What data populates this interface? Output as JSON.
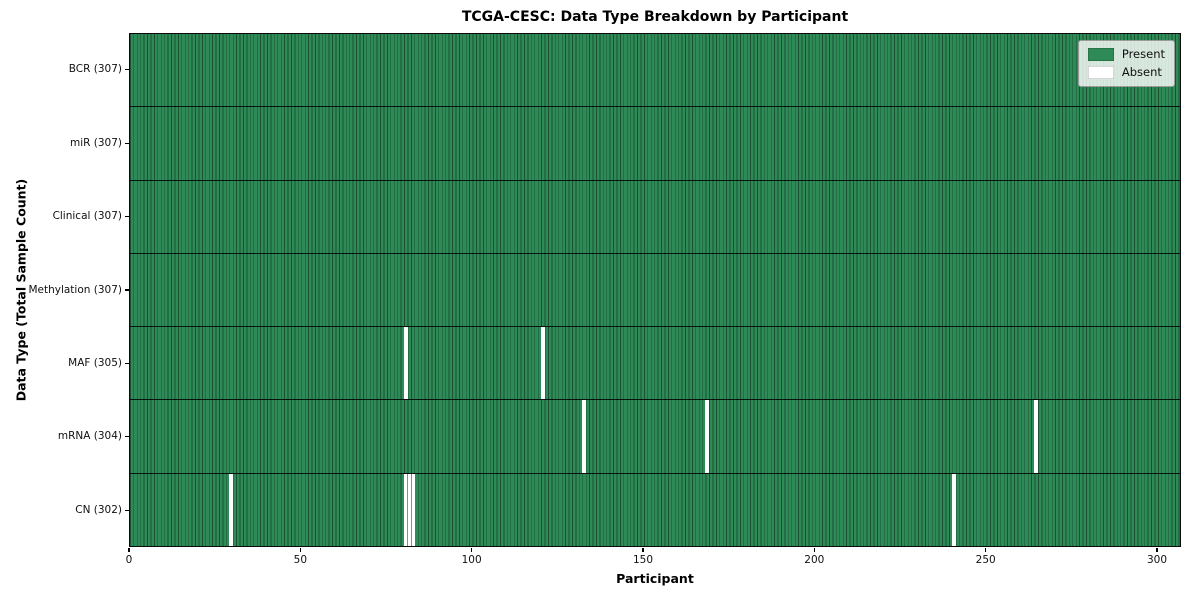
{
  "chart_data": {
    "type": "heatmap",
    "title": "TCGA-CESC: Data Type Breakdown by Participant",
    "xlabel": "Participant",
    "ylabel": "Data Type (Total Sample Count)",
    "xlim": [
      0,
      307
    ],
    "n_participants": 307,
    "x_ticks": [
      0,
      50,
      100,
      150,
      200,
      250,
      300
    ],
    "grid": false,
    "colors": {
      "present": "#2e8b57",
      "absent": "#ffffff",
      "cell_edge": "rgba(0,0,0,0.42)",
      "row_divider": "rgba(0,0,0,0.85)",
      "plot_border": "#0a0a0a"
    },
    "legend": {
      "position": "upper right",
      "entries": [
        {
          "label": "Present",
          "color": "#2e8b57"
        },
        {
          "label": "Absent",
          "color": "#ffffff"
        }
      ]
    },
    "rows": [
      {
        "data_type": "BCR",
        "label": "BCR (307)",
        "present_count": 307,
        "absent_participants": []
      },
      {
        "data_type": "miR",
        "label": "miR (307)",
        "present_count": 307,
        "absent_participants": []
      },
      {
        "data_type": "Clinical",
        "label": "Clinical (307)",
        "present_count": 307,
        "absent_participants": []
      },
      {
        "data_type": "Methylation",
        "label": "Methylation (307)",
        "present_count": 307,
        "absent_participants": []
      },
      {
        "data_type": "MAF",
        "label": "MAF (305)",
        "present_count": 305,
        "absent_participants": [
          80,
          120
        ]
      },
      {
        "data_type": "mRNA",
        "label": "mRNA (304)",
        "present_count": 304,
        "absent_participants": [
          132,
          168,
          264
        ]
      },
      {
        "data_type": "CN",
        "label": "CN (302)",
        "present_count": 302,
        "absent_participants": [
          29,
          80,
          81,
          82,
          240
        ]
      }
    ]
  }
}
